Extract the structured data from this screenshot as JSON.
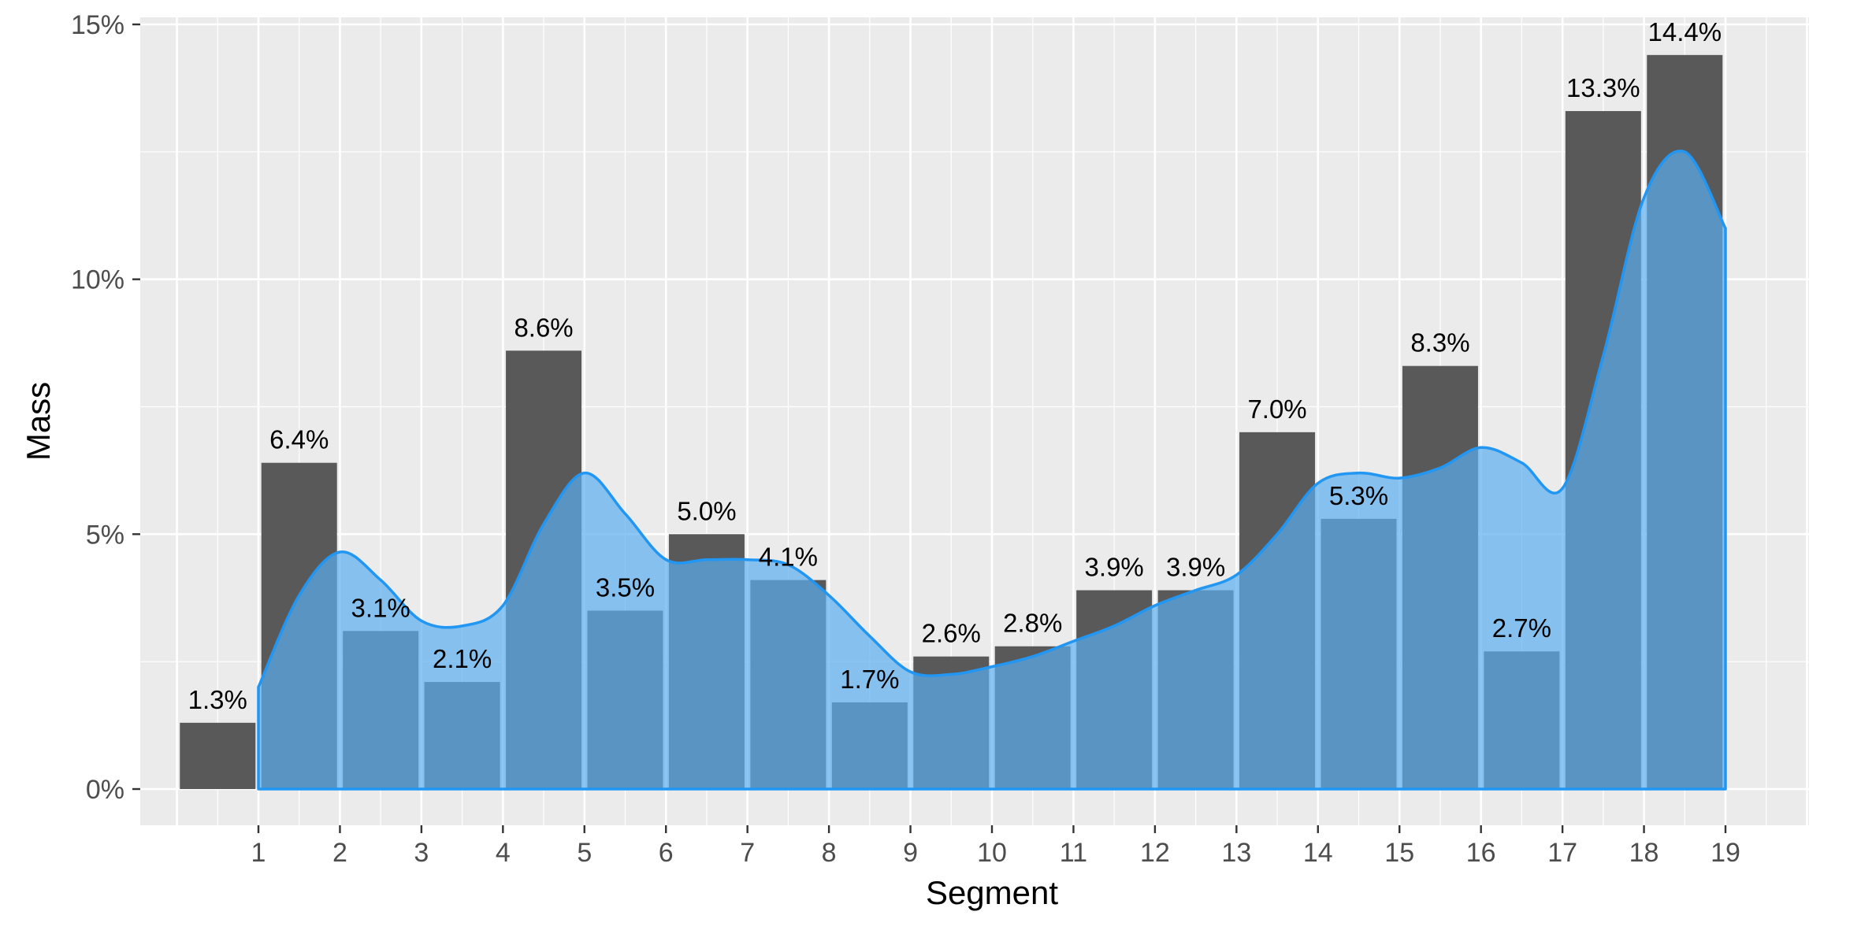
{
  "chart_data": {
    "type": "bar",
    "xlabel": "Segment",
    "ylabel": "Mass",
    "categories": [
      "1",
      "2",
      "3",
      "4",
      "5",
      "6",
      "7",
      "8",
      "9",
      "10",
      "11",
      "12",
      "13",
      "14",
      "15",
      "16",
      "17",
      "18",
      "19"
    ],
    "values": [
      1.3,
      6.4,
      3.1,
      2.1,
      8.6,
      3.5,
      5.0,
      4.1,
      1.7,
      2.6,
      2.8,
      3.9,
      3.9,
      7.0,
      5.3,
      8.3,
      2.7,
      13.3,
      14.4
    ],
    "labels": [
      "1.3%",
      "6.4%",
      "3.1%",
      "2.1%",
      "8.6%",
      "3.5%",
      "5.0%",
      "4.1%",
      "1.7%",
      "2.6%",
      "2.8%",
      "3.9%",
      "3.9%",
      "7.0%",
      "5.3%",
      "8.3%",
      "2.7%",
      "13.3%",
      "14.4%"
    ],
    "ylim": [
      0,
      15
    ],
    "y_ticks": [
      0,
      5,
      10,
      15
    ],
    "y_tick_labels": [
      "0%",
      "5%",
      "10%",
      "15%"
    ],
    "grid": true,
    "density_curve": {
      "x": [
        1,
        1.5,
        2,
        2.5,
        3,
        3.5,
        4,
        4.5,
        5,
        5.5,
        6,
        6.5,
        7,
        7.5,
        8,
        8.5,
        9,
        9.5,
        10,
        10.5,
        11,
        11.5,
        12,
        12.5,
        13,
        13.5,
        14,
        14.5,
        15,
        15.5,
        16,
        16.5,
        17,
        17.5,
        18,
        18.5,
        19
      ],
      "y": [
        2.0,
        3.8,
        4.65,
        4.1,
        3.3,
        3.2,
        3.6,
        5.2,
        6.2,
        5.4,
        4.5,
        4.5,
        4.5,
        4.4,
        3.8,
        3.0,
        2.3,
        2.25,
        2.4,
        2.6,
        2.9,
        3.2,
        3.6,
        3.9,
        4.2,
        5.0,
        6.0,
        6.2,
        6.1,
        6.3,
        6.7,
        6.4,
        5.9,
        8.5,
        11.6,
        12.5,
        11.0
      ]
    },
    "colors": {
      "panel": "#ebebeb",
      "grid": "#ffffff",
      "bar": "#595959",
      "density_fill": "#5aaef0",
      "density_line": "#2196f3"
    }
  }
}
